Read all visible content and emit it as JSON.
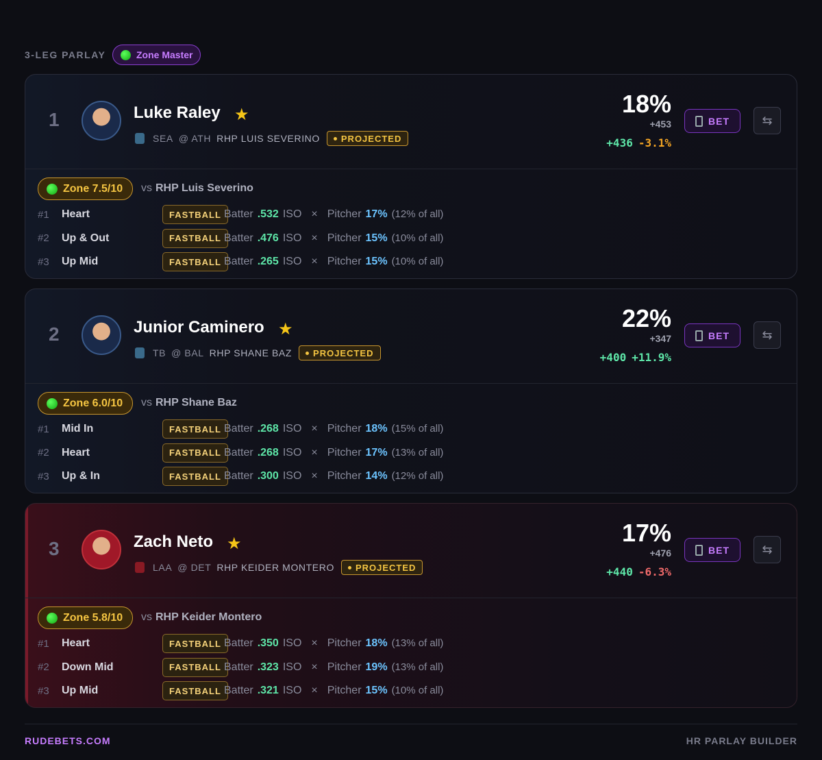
{
  "header": {
    "label": "3-LEG PARLAY",
    "badge": "Zone Master"
  },
  "labels": {
    "vs": "vs",
    "batter": "Batter",
    "iso": "ISO",
    "times": "×",
    "pitcher": "Pitcher",
    "bet": "BET",
    "projected": "PROJECTED"
  },
  "legs": [
    {
      "number": "1",
      "name": "Luke Raley",
      "team": "SEA",
      "opponent": "@ ATH",
      "pitcher": "RHP LUIS SEVERINO",
      "probability": "18%",
      "fair_odds": "+453",
      "book_odds": "+436",
      "edge": "-3.1%",
      "edge_color": "#f5a524",
      "tint": "blue",
      "zone": "Zone 7.5/10",
      "vs_pitcher": "RHP Luis Severino",
      "zones": [
        {
          "rank": "#1",
          "zone": "Heart",
          "pitch": "FASTBALL",
          "iso": ".532",
          "pct": "17%",
          "share": "(12% of all)"
        },
        {
          "rank": "#2",
          "zone": "Up & Out",
          "pitch": "FASTBALL",
          "iso": ".476",
          "pct": "15%",
          "share": "(10% of all)"
        },
        {
          "rank": "#3",
          "zone": "Up Mid",
          "pitch": "FASTBALL",
          "iso": ".265",
          "pct": "15%",
          "share": "(10% of all)"
        }
      ]
    },
    {
      "number": "2",
      "name": "Junior Caminero",
      "team": "TB",
      "opponent": "@ BAL",
      "pitcher": "RHP SHANE BAZ",
      "probability": "22%",
      "fair_odds": "+347",
      "book_odds": "+400",
      "edge": "+11.9%",
      "edge_color": "#5ee6a8",
      "tint": "blue",
      "zone": "Zone 6.0/10",
      "vs_pitcher": "RHP Shane Baz",
      "zones": [
        {
          "rank": "#1",
          "zone": "Mid In",
          "pitch": "FASTBALL",
          "iso": ".268",
          "pct": "18%",
          "share": "(15% of all)"
        },
        {
          "rank": "#2",
          "zone": "Heart",
          "pitch": "FASTBALL",
          "iso": ".268",
          "pct": "17%",
          "share": "(13% of all)"
        },
        {
          "rank": "#3",
          "zone": "Up & In",
          "pitch": "FASTBALL",
          "iso": ".300",
          "pct": "14%",
          "share": "(12% of all)"
        }
      ]
    },
    {
      "number": "3",
      "name": "Zach Neto",
      "team": "LAA",
      "opponent": "@ DET",
      "pitcher": "RHP KEIDER MONTERO",
      "probability": "17%",
      "fair_odds": "+476",
      "book_odds": "+440",
      "edge": "-6.3%",
      "edge_color": "#f06a6a",
      "tint": "red",
      "zone": "Zone 5.8/10",
      "vs_pitcher": "RHP Keider Montero",
      "zones": [
        {
          "rank": "#1",
          "zone": "Heart",
          "pitch": "FASTBALL",
          "iso": ".350",
          "pct": "18%",
          "share": "(13% of all)"
        },
        {
          "rank": "#2",
          "zone": "Down Mid",
          "pitch": "FASTBALL",
          "iso": ".323",
          "pct": "19%",
          "share": "(13% of all)"
        },
        {
          "rank": "#3",
          "zone": "Up Mid",
          "pitch": "FASTBALL",
          "iso": ".321",
          "pct": "15%",
          "share": "(10% of all)"
        }
      ]
    }
  ],
  "footer": {
    "site": "RUDEBETS.COM",
    "tool": "HR PARLAY BUILDER"
  }
}
